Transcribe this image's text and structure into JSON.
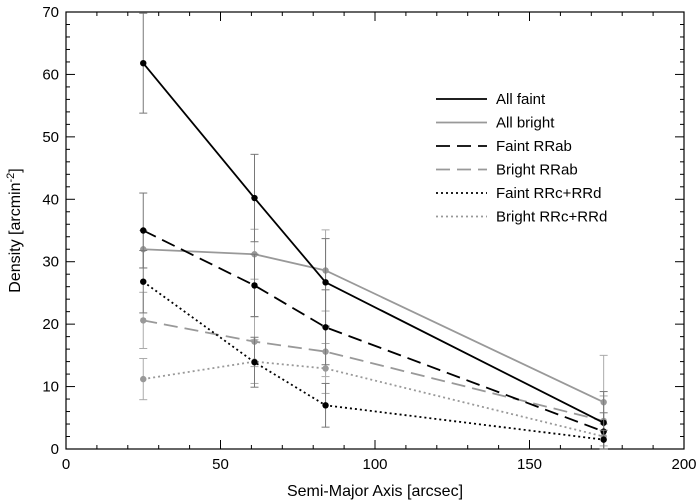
{
  "chart_data": {
    "type": "line",
    "xlabel": "Semi-Major Axis [arcsec]",
    "ylabel_main": "Density [arcmin",
    "ylabel_exp": "-2",
    "ylabel_end": "]",
    "xlim": [
      0,
      200
    ],
    "ylim": [
      0,
      70
    ],
    "xticks": [
      0,
      50,
      100,
      150,
      200
    ],
    "yticks": [
      0,
      10,
      20,
      30,
      40,
      50,
      60,
      70
    ],
    "x_minor_step": 10,
    "y_minor_step": 2,
    "grid": false,
    "legend_position": "top-right",
    "x": [
      25,
      61,
      84,
      174
    ],
    "series": [
      {
        "name": "All faint",
        "color": "#000000",
        "dash": "solid",
        "marker": true,
        "y": [
          61.8,
          40.2,
          26.7,
          4.2
        ],
        "err": [
          8,
          7,
          7,
          5
        ]
      },
      {
        "name": "All bright",
        "color": "#999999",
        "dash": "solid",
        "marker": true,
        "y": [
          32.0,
          31.2,
          28.6,
          7.5
        ],
        "err": [
          3,
          4,
          6.5,
          7.5
        ]
      },
      {
        "name": "Faint RRab",
        "color": "#000000",
        "dash": "dashed",
        "marker": true,
        "y": [
          35.0,
          26.2,
          19.5,
          2.8
        ],
        "err": [
          6,
          5,
          6,
          3
        ]
      },
      {
        "name": "Bright RRab",
        "color": "#999999",
        "dash": "dashed",
        "marker": true,
        "y": [
          20.6,
          17.2,
          15.6,
          4.5
        ],
        "err": [
          4.5,
          4,
          4,
          4
        ]
      },
      {
        "name": "Faint RRc+RRd",
        "color": "#000000",
        "dash": "dotted",
        "marker": true,
        "y": [
          26.8,
          13.9,
          7.0,
          1.5
        ],
        "err": [
          5,
          4,
          3.5,
          1.5
        ]
      },
      {
        "name": "Bright RRc+RRd",
        "color": "#999999",
        "dash": "dotted",
        "marker": true,
        "y": [
          11.2,
          14.0,
          12.9,
          2.0
        ],
        "err": [
          3.3,
          3.5,
          4,
          2
        ]
      }
    ]
  }
}
